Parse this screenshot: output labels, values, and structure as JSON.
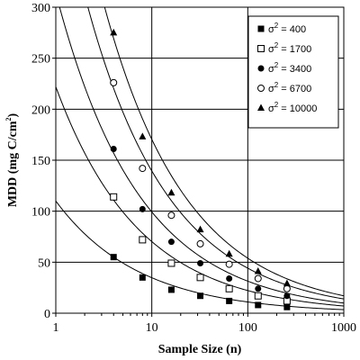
{
  "chart_data": {
    "type": "scatter",
    "xscale": "log",
    "xlim": [
      1,
      1000
    ],
    "ylim": [
      0,
      300
    ],
    "xticks": [
      1,
      10,
      100,
      1000
    ],
    "xtick_labels": [
      "1",
      "10",
      "100",
      "1000"
    ],
    "yticks": [
      0,
      50,
      100,
      150,
      200,
      250,
      300
    ],
    "ytick_labels": [
      "0",
      "50",
      "100",
      "150",
      "200",
      "250",
      "300"
    ],
    "xlabel": "Sample Size (n)",
    "ylabel": "MDD (mg C/cm²)",
    "ylabel_main": "MDD (mg C/cm",
    "ylabel_sup": "2",
    "ylabel_end": ")",
    "grid": true,
    "legend_position": "top-right",
    "x": [
      4,
      8,
      16,
      32,
      64,
      128,
      256
    ],
    "series": [
      {
        "name": "σ² = 400",
        "label_main": "σ",
        "label_sup": "2",
        "label_rest": " = 400",
        "marker": "filled-square",
        "values": [
          55,
          35,
          23,
          17,
          12,
          8,
          6
        ],
        "fit": {
          "a": 110,
          "b": 0.5
        }
      },
      {
        "name": "σ² = 1700",
        "label_main": "σ",
        "label_sup": "2",
        "label_rest": " = 1700",
        "marker": "open-square",
        "values": [
          114,
          72,
          49,
          35,
          24,
          17,
          12
        ],
        "fit": {
          "a": 222,
          "b": 0.5
        }
      },
      {
        "name": "σ² = 3400",
        "label_main": "σ",
        "label_sup": "2",
        "label_rest": " = 3400",
        "marker": "filled-circle",
        "values": [
          161,
          102,
          70,
          49,
          34,
          24,
          17
        ],
        "fit": {
          "a": 314,
          "b": 0.5
        }
      },
      {
        "name": "σ² = 6700",
        "label_main": "σ",
        "label_sup": "2",
        "label_rest": " = 6700",
        "marker": "open-circle",
        "values": [
          226,
          142,
          96,
          68,
          48,
          34,
          24
        ],
        "fit": {
          "a": 441,
          "b": 0.5
        }
      },
      {
        "name": "σ² = 10000",
        "label_main": "σ",
        "label_sup": "2",
        "label_rest": " = 10000",
        "marker": "filled-triangle",
        "values": [
          275,
          173,
          118,
          82,
          58,
          41,
          29
        ],
        "fit": {
          "a": 539,
          "b": 0.5
        }
      }
    ]
  }
}
